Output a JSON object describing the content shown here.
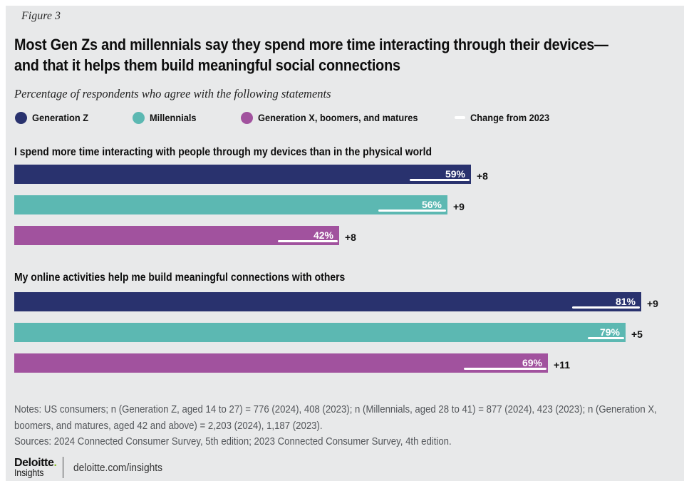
{
  "figure_label": "Figure 3",
  "title": {
    "line1": "Most Gen Zs and millennials say they spend more time interacting through their devices—",
    "line2": "and that it helps them build meaningful social connections"
  },
  "subtitle": "Percentage of respondents who agree with the following statements",
  "legend": {
    "items": [
      {
        "label": "Generation Z",
        "color": "#29326e"
      },
      {
        "label": "Millennials",
        "color": "#5cb8b2"
      },
      {
        "label": "Generation X, boomers, and matures",
        "color": "#a1529e"
      }
    ],
    "change": {
      "label": "Change from 2023",
      "color": "#ffffff"
    }
  },
  "chart_data": {
    "type": "bar",
    "orientation": "horizontal",
    "unit": "percent",
    "xlim": [
      0,
      100
    ],
    "categories": [
      "Generation Z",
      "Millennials",
      "Generation X, boomers, and matures"
    ],
    "groups": [
      {
        "statement": "I spend more time interacting with people through my devices than in the physical world",
        "bars": [
          {
            "generation": "Generation Z",
            "value": 59,
            "value_label": "59%",
            "change": 8,
            "change_label": "+8"
          },
          {
            "generation": "Millennials",
            "value": 56,
            "value_label": "56%",
            "change": 9,
            "change_label": "+9"
          },
          {
            "generation": "Generation X, boomers, and matures",
            "value": 42,
            "value_label": "42%",
            "change": 8,
            "change_label": "+8"
          }
        ]
      },
      {
        "statement": "My online activities help me build meaningful connections with others",
        "bars": [
          {
            "generation": "Generation Z",
            "value": 81,
            "value_label": "81%",
            "change": 9,
            "change_label": "+9"
          },
          {
            "generation": "Millennials",
            "value": 79,
            "value_label": "79%",
            "change": 5,
            "change_label": "+5"
          },
          {
            "generation": "Generation X, boomers, and matures",
            "value": 69,
            "value_label": "69%",
            "change": 11,
            "change_label": "+11"
          }
        ]
      }
    ]
  },
  "notes": {
    "line1": "Notes: US consumers; n (Generation Z, aged 14 to 27) = 776 (2024), 408 (2023); n (Millennials, aged 28 to 41) = 877 (2024), 423 (2023); n (Generation X,",
    "line2": "boomers, and matures, aged 42 and above) = 2,203 (2024), 1,187 (2023).",
    "sources": "Sources: 2024 Connected Consumer Survey, 5th edition; 2023 Connected Consumer Survey, 4th edition."
  },
  "footer": {
    "brand": "Deloitte",
    "brand_dot": ".",
    "sub_brand": "Insights",
    "url": "deloitte.com/insights"
  },
  "colors": {
    "background": "#e8e9ea",
    "page_margin": "#ffffff",
    "gen_z": "#29326e",
    "millennials": "#5cb8b2",
    "gen_x": "#a1529e",
    "change_line": "#ffffff",
    "notes_text": "#53565a",
    "brand_green": "#86bc25"
  }
}
